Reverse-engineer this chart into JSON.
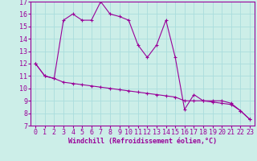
{
  "xlabel": "Windchill (Refroidissement éolien,°C)",
  "background_color": "#cceee8",
  "grid_color": "#aadddd",
  "line_color": "#990099",
  "xlim": [
    -0.5,
    23.5
  ],
  "ylim": [
    7,
    17
  ],
  "xticks": [
    0,
    1,
    2,
    3,
    4,
    5,
    6,
    7,
    8,
    9,
    10,
    11,
    12,
    13,
    14,
    15,
    16,
    17,
    18,
    19,
    20,
    21,
    22,
    23
  ],
  "yticks": [
    7,
    8,
    9,
    10,
    11,
    12,
    13,
    14,
    15,
    16,
    17
  ],
  "series1_x": [
    0,
    1,
    2,
    3,
    4,
    5,
    6,
    7,
    8,
    9,
    10,
    11,
    12,
    13,
    14,
    15,
    16,
    17,
    18,
    19,
    20,
    21,
    22,
    23
  ],
  "series1_y": [
    12,
    11,
    10.8,
    15.5,
    16.0,
    15.5,
    15.5,
    17.0,
    16.0,
    15.8,
    15.5,
    13.5,
    12.5,
    13.5,
    15.5,
    12.5,
    8.3,
    9.5,
    9.0,
    9.0,
    9.0,
    8.8,
    8.2,
    7.5
  ],
  "series2_x": [
    0,
    1,
    2,
    3,
    4,
    5,
    6,
    7,
    8,
    9,
    10,
    11,
    12,
    13,
    14,
    15,
    16,
    17,
    18,
    19,
    20,
    21,
    22,
    23
  ],
  "series2_y": [
    12,
    11,
    10.8,
    10.5,
    10.4,
    10.3,
    10.2,
    10.1,
    10.0,
    9.9,
    9.8,
    9.7,
    9.6,
    9.5,
    9.4,
    9.3,
    9.0,
    9.0,
    9.0,
    8.9,
    8.8,
    8.7,
    8.2,
    7.5
  ],
  "font_size": 6,
  "tick_font_size": 6
}
